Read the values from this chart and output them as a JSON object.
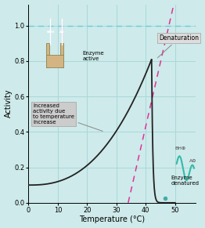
{
  "bg_color": "#ceeaea",
  "grid_color": "#a8d8d8",
  "xlim": [
    0,
    57
  ],
  "ylim": [
    0.0,
    1.12
  ],
  "xlabel": "Temperature (°C)",
  "ylabel": "Activity",
  "xticks": [
    0,
    10,
    20,
    30,
    40,
    50
  ],
  "yticks": [
    0.0,
    0.2,
    0.4,
    0.6,
    0.8,
    1.0
  ],
  "main_curve_color": "#222222",
  "dashed_blue_color": "#66ccdd",
  "dashed_pink_color": "#dd3399",
  "denaturation_label": "Denaturation",
  "enzyme_active_label": "Enzyme\nactive",
  "enzyme_denatured_label": "Enzyme\ndenatured",
  "increased_activity_label": "Increased\nactivity due\nto temperature\nincrease",
  "bh_plus_color": "#5599ee",
  "a_minus_color": "#ee3388",
  "teal_squiggle_color": "#33bbaa",
  "dot_color": "#44aaaa",
  "enzyme_body_color": "#d4b483",
  "enzyme_edge_color": "#888855"
}
